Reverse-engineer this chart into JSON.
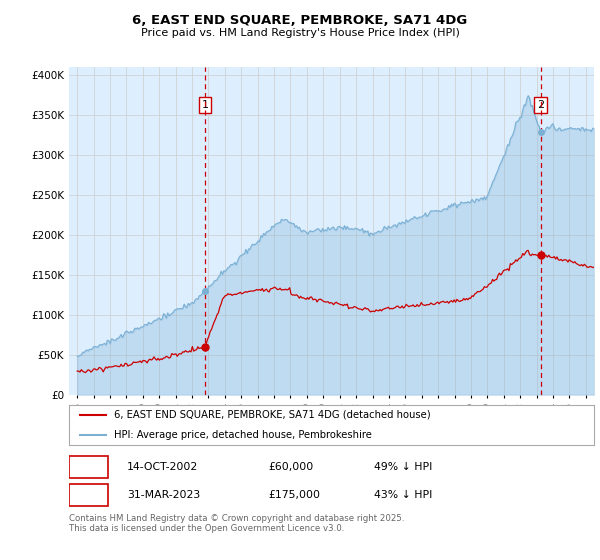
{
  "title": "6, EAST END SQUARE, PEMBROKE, SA71 4DG",
  "subtitle": "Price paid vs. HM Land Registry's House Price Index (HPI)",
  "ylim": [
    0,
    410000
  ],
  "xlim_start": 1994.5,
  "xlim_end": 2026.5,
  "sale1_date": 2002.79,
  "sale1_price": 60000,
  "sale2_date": 2023.25,
  "sale2_price": 175000,
  "sale1_date_str": "14-OCT-2002",
  "sale1_price_str": "£60,000",
  "sale1_hpi_str": "49% ↓ HPI",
  "sale2_date_str": "31-MAR-2023",
  "sale2_price_str": "£175,000",
  "sale2_hpi_str": "43% ↓ HPI",
  "legend_label1": "6, EAST END SQUARE, PEMBROKE, SA71 4DG (detached house)",
  "legend_label2": "HPI: Average price, detached house, Pembrokeshire",
  "footer": "Contains HM Land Registry data © Crown copyright and database right 2025.\nThis data is licensed under the Open Government Licence v3.0.",
  "line_color_red": "#cc0000",
  "line_color_blue": "#7ab0d4",
  "line_color_blue_fill": "#ddeeff",
  "vline_color": "#cc0000",
  "grid_color": "#cccccc",
  "bg_color": "#ffffff",
  "plot_bg_color": "#ddeeff"
}
